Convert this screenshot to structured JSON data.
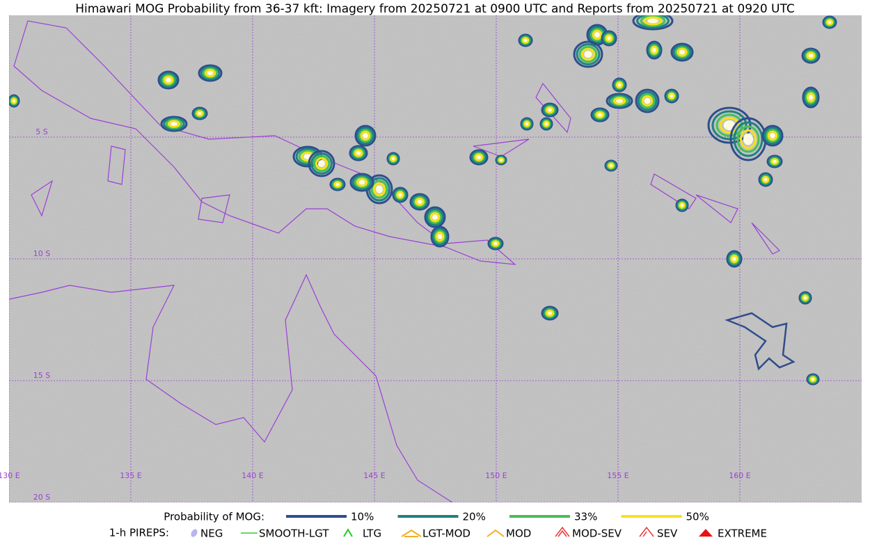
{
  "title": "Himawari MOG Probability from 36-37 kft: Imagery from 20250721 at 0900 UTC and Reports from 20250721 at 0920 UTC",
  "map": {
    "lon_labels": [
      "130 E",
      "135 E",
      "140 E",
      "145 E",
      "150 E",
      "155 E",
      "160 E"
    ],
    "lat_labels": [
      "5 S",
      "10 S",
      "15 S",
      "20 S"
    ]
  },
  "legend": {
    "probability": {
      "label": "Probability of MOG:",
      "items": [
        {
          "name": "10%",
          "color": "#2f4d8c"
        },
        {
          "name": "20%",
          "color": "#1e8282"
        },
        {
          "name": "33%",
          "color": "#48bf55"
        },
        {
          "name": "50%",
          "color": "#f5e11a"
        }
      ]
    },
    "pireps": {
      "label": "1-h PIREPS:",
      "items": [
        {
          "name": "NEG",
          "color": "#b7b7ee"
        },
        {
          "name": "SMOOTH-LGT",
          "color": "#33cc33"
        },
        {
          "name": "LTG",
          "color": "#22cc22"
        },
        {
          "name": "LGT-MOD",
          "color": "#f0b020"
        },
        {
          "name": "MOD",
          "color": "#f0b020"
        },
        {
          "name": "MOD-SEV",
          "color": "#ee3333"
        },
        {
          "name": "SEV",
          "color": "#ee3333"
        },
        {
          "name": "EXTREME",
          "color": "#ee1111"
        }
      ]
    }
  }
}
